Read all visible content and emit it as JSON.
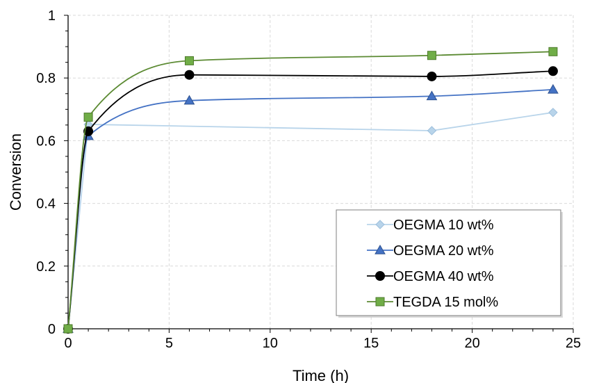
{
  "chart_data": {
    "type": "line",
    "title": "",
    "xlabel": "Time (h)",
    "ylabel": "Conversion",
    "xlim": [
      0,
      25
    ],
    "ylim": [
      0,
      1
    ],
    "xticks": [
      0,
      5,
      10,
      15,
      20,
      25
    ],
    "yticks": [
      0,
      0.2,
      0.4,
      0.6,
      0.8,
      1
    ],
    "xtick_labels": [
      "0",
      "5",
      "10",
      "15",
      "20",
      "25"
    ],
    "ytick_labels": [
      "0",
      "0.2",
      "0.4",
      "0.6",
      "0.8",
      "1"
    ],
    "grid": "dashed, major x and y",
    "legend_position": "bottom-right",
    "series": [
      {
        "name": "OEGMA 10 wt%",
        "color": "#b8d4ea",
        "marker": "diamond",
        "smooth": false,
        "x": [
          0,
          1,
          18,
          24
        ],
        "y": [
          0,
          0.652,
          0.632,
          0.69
        ]
      },
      {
        "name": "OEGMA 20 wt%",
        "color": "#4472c4",
        "marker": "triangle",
        "smooth": true,
        "x": [
          0,
          1,
          6,
          18,
          24
        ],
        "y": [
          0,
          0.615,
          0.728,
          0.742,
          0.763
        ]
      },
      {
        "name": "OEGMA 40 wt%",
        "color": "#000000",
        "marker": "circle",
        "smooth": true,
        "x": [
          0,
          1,
          6,
          18,
          24
        ],
        "y": [
          0,
          0.63,
          0.81,
          0.805,
          0.822
        ]
      },
      {
        "name": "TEGDA 15 mol%",
        "color": "#5b8a32",
        "marker_fill": "#70ad47",
        "marker": "square",
        "smooth": true,
        "x": [
          0,
          1,
          6,
          18,
          24
        ],
        "y": [
          0,
          0.675,
          0.855,
          0.872,
          0.884
        ]
      }
    ]
  }
}
